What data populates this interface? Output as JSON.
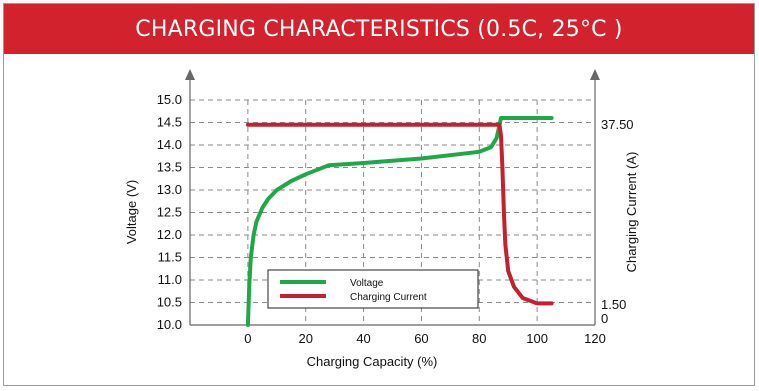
{
  "header": {
    "title": "CHARGING CHARACTERISTICS (0.5C, 25°C )"
  },
  "colors": {
    "header_bg": "#d2222d",
    "voltage": "#1fa84a",
    "current": "#c4202f",
    "grid": "#8a8a8a",
    "axis": "#666666"
  },
  "chart_data": {
    "type": "line",
    "title": "CHARGING CHARACTERISTICS (0.5C, 25°C )",
    "xlabel": "Charging Capacity (%)",
    "ylabel": "Voltage (V)",
    "y2label": "Charging Current (A)",
    "xlim": [
      -20,
      120
    ],
    "ylim": [
      10.0,
      15.0
    ],
    "x_ticks": [
      "0",
      "20",
      "40",
      "60",
      "80",
      "100",
      "120"
    ],
    "y_ticks": [
      "10.0",
      "10.5",
      "11.0",
      "11.5",
      "12.0",
      "12.5",
      "13.0",
      "13.5",
      "14.0",
      "14.5",
      "15.0"
    ],
    "y2_ticks": [
      "0",
      "1.50",
      "37.50"
    ],
    "grid": true,
    "legend_position": "bottom-left",
    "legend": [
      "Voltage",
      "Charging Current"
    ],
    "series": [
      {
        "name": "Voltage",
        "color": "#1fa84a",
        "x": [
          0,
          0.5,
          1,
          2,
          3,
          5,
          7,
          10,
          15,
          20,
          28,
          40,
          60,
          80,
          84,
          86,
          87,
          87.5,
          105
        ],
        "y": [
          10.0,
          10.9,
          11.5,
          12.0,
          12.3,
          12.6,
          12.8,
          13.0,
          13.2,
          13.35,
          13.55,
          13.6,
          13.7,
          13.85,
          13.95,
          14.15,
          14.45,
          14.6,
          14.6
        ]
      },
      {
        "name": "Charging Current",
        "color": "#c4202f",
        "x": [
          0,
          87,
          87.5,
          88,
          88.5,
          89,
          90,
          92,
          95,
          100,
          105
        ],
        "y": [
          14.45,
          14.45,
          14.2,
          13.5,
          12.5,
          11.8,
          11.2,
          10.85,
          10.6,
          10.48,
          10.48
        ]
      }
    ]
  }
}
